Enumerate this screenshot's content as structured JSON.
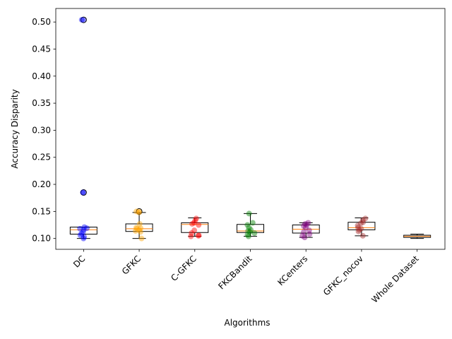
{
  "chart_data": {
    "type": "box",
    "xlabel": "Algorithms",
    "ylabel": "Accuracy Disparity",
    "ylim": [
      0.08,
      0.525
    ],
    "yticks": [
      "0.10",
      "0.15",
      "0.20",
      "0.25",
      "0.30",
      "0.35",
      "0.40",
      "0.45",
      "0.50"
    ],
    "grid": false,
    "categories": [
      "DC",
      "GFKC",
      "C-GFKC",
      "FKCBandit",
      "KCenters",
      "GFKC_nocov",
      "Whole Dataset"
    ],
    "box_color": "#000000",
    "median_color": "#ff7f0e",
    "series": [
      {
        "name": "DC",
        "color": "#0000ff",
        "box": {
          "whislo": 0.1,
          "q1": 0.108,
          "med": 0.116,
          "q3": 0.121,
          "whishi": 0.121
        },
        "points": [
          0.1,
          0.103,
          0.106,
          0.109,
          0.112,
          0.116,
          0.118,
          0.119,
          0.121,
          0.185,
          0.504
        ],
        "fliers": [
          0.185,
          0.504
        ]
      },
      {
        "name": "GFKC",
        "color": "#ffa500",
        "box": {
          "whislo": 0.1,
          "q1": 0.113,
          "med": 0.118,
          "q3": 0.127,
          "whishi": 0.148
        },
        "points": [
          0.1,
          0.112,
          0.114,
          0.116,
          0.118,
          0.119,
          0.12,
          0.127,
          0.148,
          0.15
        ],
        "fliers": [
          0.15
        ]
      },
      {
        "name": "C-GFKC",
        "color": "#ff0000",
        "box": {
          "whislo": 0.104,
          "q1": 0.111,
          "med": 0.126,
          "q3": 0.129,
          "whishi": 0.138
        },
        "points": [
          0.104,
          0.105,
          0.106,
          0.11,
          0.115,
          0.125,
          0.127,
          0.129,
          0.133,
          0.137
        ],
        "fliers": []
      },
      {
        "name": "FKCBandit",
        "color": "#008000",
        "box": {
          "whislo": 0.104,
          "q1": 0.111,
          "med": 0.114,
          "q3": 0.126,
          "whishi": 0.146
        },
        "points": [
          0.104,
          0.107,
          0.11,
          0.112,
          0.114,
          0.116,
          0.12,
          0.125,
          0.129,
          0.146
        ],
        "fliers": []
      },
      {
        "name": "KCenters",
        "color": "#800080",
        "box": {
          "whislo": 0.102,
          "q1": 0.11,
          "med": 0.117,
          "q3": 0.125,
          "whishi": 0.129
        },
        "points": [
          0.102,
          0.105,
          0.108,
          0.112,
          0.115,
          0.12,
          0.123,
          0.125,
          0.127,
          0.129
        ],
        "fliers": []
      },
      {
        "name": "GFKC_nocov",
        "color": "#a52a2a",
        "box": {
          "whislo": 0.105,
          "q1": 0.116,
          "med": 0.12,
          "q3": 0.13,
          "whishi": 0.138
        },
        "points": [
          0.105,
          0.113,
          0.116,
          0.118,
          0.12,
          0.124,
          0.128,
          0.13,
          0.134,
          0.137
        ],
        "fliers": []
      },
      {
        "name": "Whole Dataset",
        "color": "#808080",
        "box": {
          "whislo": 0.1,
          "q1": 0.102,
          "med": 0.104,
          "q3": 0.106,
          "whishi": 0.108
        },
        "points": [],
        "fliers": []
      }
    ]
  }
}
